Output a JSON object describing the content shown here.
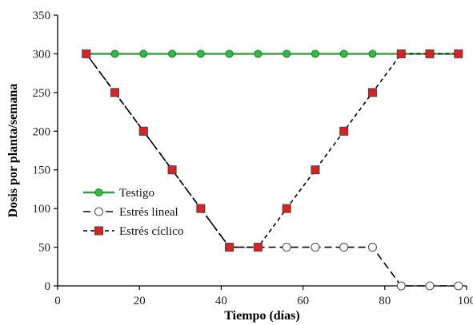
{
  "chart_data": {
    "type": "line",
    "xlabel": "Tiempo (días)",
    "ylabel": "Dosis por planta/semana",
    "xlim": [
      0,
      100
    ],
    "ylim": [
      0,
      350
    ],
    "xticks": [
      0,
      20,
      40,
      60,
      80,
      100
    ],
    "yticks": [
      0,
      50,
      100,
      150,
      200,
      250,
      300,
      350
    ],
    "grid": false,
    "legend_position": "left-middle",
    "series": [
      {
        "name": "Testigo",
        "color": "#2e9e3e",
        "line_style": "solid",
        "marker": "filled-circle",
        "marker_fill": "#2ebd3e",
        "x": [
          7,
          14,
          21,
          28,
          35,
          42,
          49,
          56,
          63,
          70,
          77,
          84,
          91,
          98
        ],
        "y": [
          300,
          300,
          300,
          300,
          300,
          300,
          300,
          300,
          300,
          300,
          300,
          300,
          300,
          300
        ]
      },
      {
        "name": "Estrés lineal",
        "color": "#000000",
        "line_style": "long-dash",
        "marker": "open-circle",
        "marker_fill": "#ffffff",
        "x": [
          7,
          14,
          21,
          28,
          35,
          42,
          49,
          56,
          63,
          70,
          77,
          84,
          91,
          98
        ],
        "y": [
          300,
          250,
          200,
          150,
          100,
          50,
          50,
          50,
          50,
          50,
          50,
          0,
          0,
          0
        ]
      },
      {
        "name": "Estrés cíclico",
        "color": "#000000",
        "line_style": "short-dash",
        "marker": "square",
        "marker_fill": "#e02020",
        "x": [
          7,
          14,
          21,
          28,
          35,
          42,
          49,
          56,
          63,
          70,
          77,
          84,
          91,
          98
        ],
        "y": [
          300,
          250,
          200,
          150,
          100,
          50,
          50,
          100,
          150,
          200,
          250,
          300,
          300,
          300
        ]
      }
    ]
  }
}
